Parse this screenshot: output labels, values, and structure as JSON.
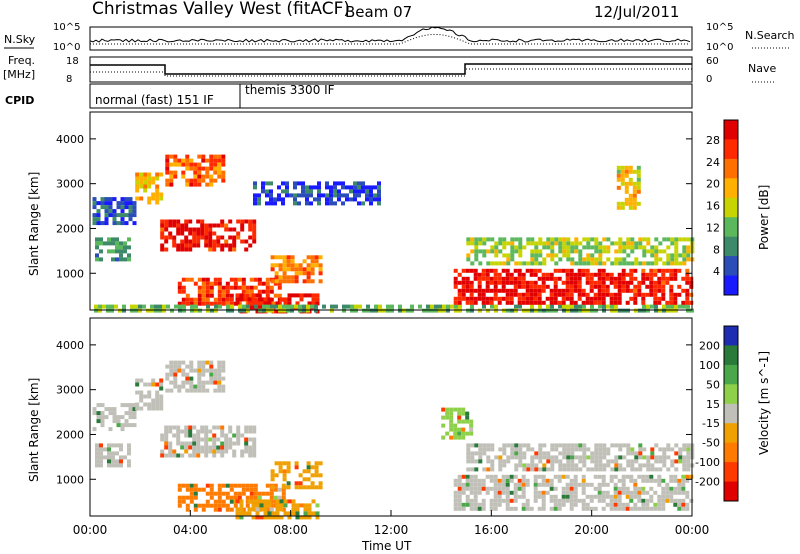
{
  "header": {
    "station": "Christmas Valley West (fitACF)",
    "beam": "Beam 07",
    "date": "12/Jul/2011"
  },
  "colors": {
    "power_scale": [
      "#1a1aff",
      "#2a4db8",
      "#3d8a6a",
      "#5cb85c",
      "#c8d400",
      "#ffb000",
      "#ff7000",
      "#ff2a00",
      "#e00000"
    ],
    "velocity_scale": [
      "#1d2cb0",
      "#2a7a3a",
      "#4aa84a",
      "#8ed04a",
      "#c0c0b8",
      "#f0a000",
      "#ff7a00",
      "#ff3a00",
      "#e00000"
    ],
    "background": "#ffffff"
  },
  "status_panels": {
    "noise": {
      "left_label": "N.Sky",
      "right_label": "N.Search",
      "ticks_left": [
        "10^5",
        "10^0"
      ],
      "ticks_right": [
        "10^5",
        "10^0"
      ]
    },
    "freq": {
      "left_label_1": "Freq.",
      "left_label_2": "[MHz]",
      "right_label": "Nave",
      "ticks_left": [
        "18",
        "8"
      ],
      "ticks_right": [
        "60",
        "0"
      ]
    },
    "cpid": {
      "label": "CPID",
      "modes": [
        {
          "text": "normal (fast) 151 IF",
          "start_hour": 0,
          "end_hour": 6
        },
        {
          "text": "themis 3300 IF",
          "start_hour": 6,
          "end_hour": 24
        }
      ]
    }
  },
  "chart_data": [
    {
      "type": "heatmap",
      "title": "",
      "xlabel": "",
      "ylabel": "Slant Range [km]",
      "xlim": [
        0,
        24
      ],
      "ylim": [
        180,
        4600
      ],
      "colorbar": {
        "label": "Power [dB]",
        "ticks": [
          "4",
          "8",
          "12",
          "16",
          "20",
          "24",
          "28"
        ],
        "range": [
          0,
          30
        ]
      },
      "y_ticks": [
        "1000",
        "2000",
        "3000",
        "4000"
      ],
      "regions": [
        {
          "t0": 0.1,
          "t1": 1.8,
          "r0": 2100,
          "r1": 2700,
          "db": 5
        },
        {
          "t0": 0.2,
          "t1": 1.5,
          "r0": 1300,
          "r1": 1800,
          "db": 9
        },
        {
          "t0": 1.8,
          "t1": 2.8,
          "r0": 2600,
          "r1": 3250,
          "db": 18
        },
        {
          "t0": 3.0,
          "t1": 5.3,
          "r0": 2950,
          "r1": 3650,
          "db": 23
        },
        {
          "t0": 2.8,
          "t1": 6.5,
          "r0": 1500,
          "r1": 2200,
          "db": 27
        },
        {
          "t0": 3.5,
          "t1": 7.8,
          "r0": 350,
          "r1": 900,
          "db": 25
        },
        {
          "t0": 5.8,
          "t1": 9.0,
          "r0": 180,
          "r1": 550,
          "db": 28
        },
        {
          "t0": 7.2,
          "t1": 9.2,
          "r0": 800,
          "r1": 1400,
          "db": 21
        },
        {
          "t0": 6.5,
          "t1": 11.5,
          "r0": 2600,
          "r1": 3050,
          "db": 4
        },
        {
          "t0": 0.0,
          "t1": 24.0,
          "r0": 180,
          "r1": 300,
          "db": 12
        },
        {
          "t0": 14.5,
          "t1": 21.5,
          "r0": 350,
          "r1": 1100,
          "db": 28
        },
        {
          "t0": 15.0,
          "t1": 24.0,
          "r0": 1200,
          "r1": 1800,
          "db": 14
        },
        {
          "t0": 21.5,
          "t1": 24.0,
          "r0": 300,
          "r1": 1100,
          "db": 27
        },
        {
          "t0": 21.0,
          "t1": 21.8,
          "r0": 2500,
          "r1": 3400,
          "db": 17
        }
      ]
    },
    {
      "type": "heatmap",
      "title": "",
      "xlabel": "Time UT",
      "ylabel": "Slant Range [km]",
      "xlim": [
        0,
        24
      ],
      "ylim": [
        180,
        4600
      ],
      "x_ticks": [
        "00:00",
        "04:00",
        "08:00",
        "12:00",
        "16:00",
        "20:00",
        "00:00"
      ],
      "y_ticks": [
        "1000",
        "2000",
        "3000",
        "4000"
      ],
      "colorbar": {
        "label": "Velocity [m s^-1]",
        "ticks": [
          "200",
          "100",
          "50",
          "15",
          "-15",
          "-50",
          "-100",
          "-200"
        ],
        "range": [
          -250,
          250
        ]
      },
      "regions": [
        {
          "t0": 0.1,
          "t1": 1.8,
          "r0": 2100,
          "r1": 2700,
          "v": 0
        },
        {
          "t0": 0.2,
          "t1": 1.5,
          "r0": 1300,
          "r1": 1800,
          "v": 0
        },
        {
          "t0": 1.8,
          "t1": 2.8,
          "r0": 2600,
          "r1": 3250,
          "v": 0
        },
        {
          "t0": 3.0,
          "t1": 5.3,
          "r0": 2950,
          "r1": 3650,
          "v": 0
        },
        {
          "t0": 2.8,
          "t1": 6.5,
          "r0": 1500,
          "r1": 2200,
          "v": 0
        },
        {
          "t0": 3.5,
          "t1": 7.8,
          "r0": 350,
          "r1": 900,
          "v": -70
        },
        {
          "t0": 5.8,
          "t1": 9.0,
          "r0": 180,
          "r1": 550,
          "v": -40
        },
        {
          "t0": 7.2,
          "t1": 9.2,
          "r0": 800,
          "r1": 1400,
          "v": -40
        },
        {
          "t0": 14.5,
          "t1": 21.5,
          "r0": 350,
          "r1": 1100,
          "v": 0
        },
        {
          "t0": 15.0,
          "t1": 24.0,
          "r0": 1200,
          "r1": 1800,
          "v": 0
        },
        {
          "t0": 21.5,
          "t1": 24.0,
          "r0": 300,
          "r1": 1100,
          "v": 0
        },
        {
          "t0": 14.0,
          "t1": 15.2,
          "r0": 1900,
          "r1": 2600,
          "v": 30
        }
      ]
    }
  ]
}
